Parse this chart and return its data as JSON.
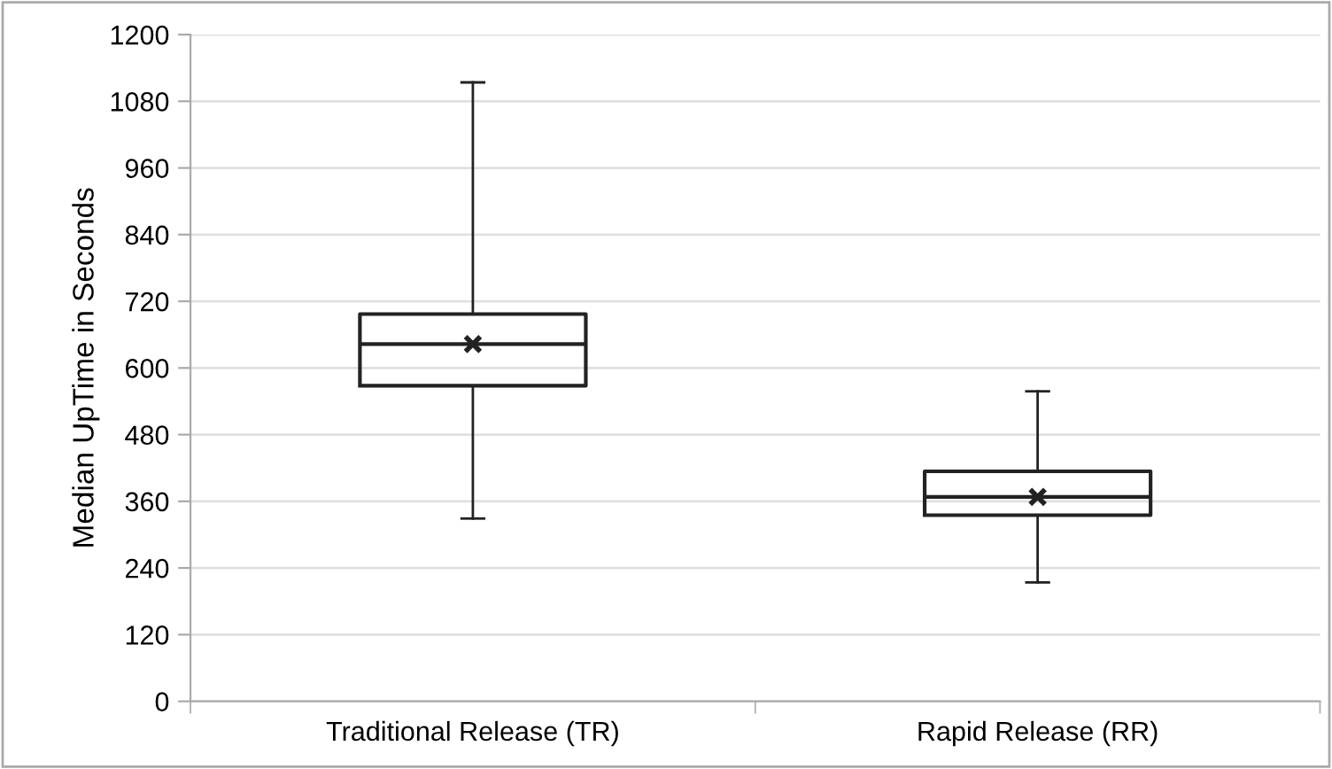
{
  "chart_data": {
    "type": "box",
    "ylabel": "Median UpTime in Seconds",
    "categories": [
      "Traditional Release (TR)",
      "Rapid Release (RR)"
    ],
    "boxes": [
      {
        "low": 329,
        "q1": 568,
        "median": 643,
        "q3": 697,
        "high": 1114,
        "mean": 643
      },
      {
        "low": 214,
        "q1": 335,
        "median": 368,
        "q3": 414,
        "high": 558,
        "mean": 368
      }
    ],
    "color": "#222222",
    "ylim": [
      0,
      1200
    ],
    "yticks": [
      0,
      120,
      240,
      360,
      480,
      600,
      720,
      840,
      960,
      1080,
      1200
    ],
    "grid": "y",
    "legend": false,
    "marker": "cross"
  }
}
